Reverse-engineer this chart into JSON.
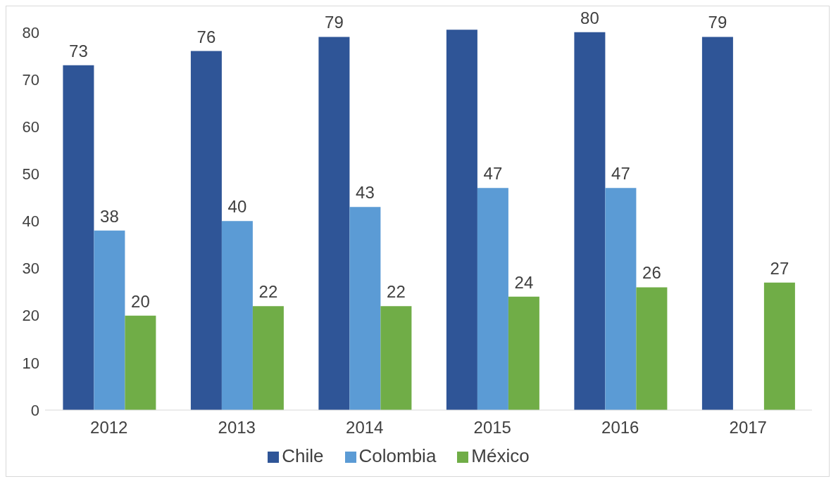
{
  "chart_data": {
    "type": "bar",
    "categories": [
      "2012",
      "2013",
      "2014",
      "2015",
      "2016",
      "2017"
    ],
    "series": [
      {
        "name": "Chile",
        "color": "#2f5597",
        "values": [
          73,
          76,
          79,
          80.5,
          80,
          79
        ],
        "value_labels": [
          "73",
          "76",
          "79",
          null,
          "80",
          "79"
        ]
      },
      {
        "name": "Colombia",
        "color": "#5b9bd5",
        "values": [
          38,
          40,
          43,
          47,
          47,
          null
        ],
        "value_labels": [
          "38",
          "40",
          "43",
          "47",
          "47",
          null
        ]
      },
      {
        "name": "México",
        "color": "#70ad47",
        "values": [
          20,
          22,
          22,
          24,
          26,
          27
        ],
        "value_labels": [
          "20",
          "22",
          "22",
          "24",
          "26",
          "27"
        ]
      }
    ],
    "ylim": [
      0,
      81
    ],
    "yticks": [
      0,
      10,
      20,
      30,
      40,
      50,
      60,
      70,
      80
    ],
    "grid": false,
    "legend": "bottom"
  }
}
